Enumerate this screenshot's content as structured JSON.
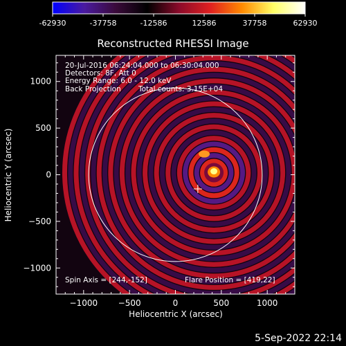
{
  "colors": {
    "background": "#000000",
    "text": "#ffffff",
    "colormap": [
      "#0000ff",
      "#4a1aa0",
      "#3a0a3a",
      "#000000",
      "#8a0a2a",
      "#e02020",
      "#ff8a00",
      "#ffff66",
      "#ffffff"
    ]
  },
  "colorbar": {
    "tick_labels": [
      "-62930",
      "-37758",
      "-12586",
      "12586",
      "37758",
      "62930"
    ]
  },
  "annotations": {
    "time_range": "20-Jul-2016 06:24:04.000 to 06:30:04.000",
    "detectors": "Detectors: 8F, Att 0",
    "energy_range": "Energy Range: 6.0 - 12.0 keV",
    "method": "Back Projection",
    "total_counts": "Total counts: 3.15E+04",
    "spin_axis": "Spin Axis = [244,-152]",
    "flare_position": "Flare Position = [419,22]"
  },
  "footer": {
    "date_stamp": "5-Sep-2022 22:14"
  },
  "chart_data": {
    "type": "heatmap",
    "title": "Reconstructed RHESSI Image",
    "xlabel": "Heliocentric X (arcsec)",
    "ylabel": "Heliocentric Y (arcsec)",
    "xlim": [
      -1300,
      1300
    ],
    "ylim": [
      -1280,
      1280
    ],
    "x_ticks": [
      -1000,
      -500,
      0,
      500,
      1000
    ],
    "x_tick_labels": [
      "−1000",
      "−500",
      "0",
      "500",
      "1000"
    ],
    "y_ticks": [
      -1000,
      -500,
      0,
      500,
      1000
    ],
    "y_tick_labels": [
      "−1000",
      "−500",
      "0",
      "500",
      "1000"
    ],
    "color_range": [
      -62930,
      62930
    ],
    "source_center": [
      419,
      22
    ],
    "spin_axis": [
      244,
      -152
    ],
    "solar_limb_radius": 945,
    "ring_spacing": 125
  }
}
